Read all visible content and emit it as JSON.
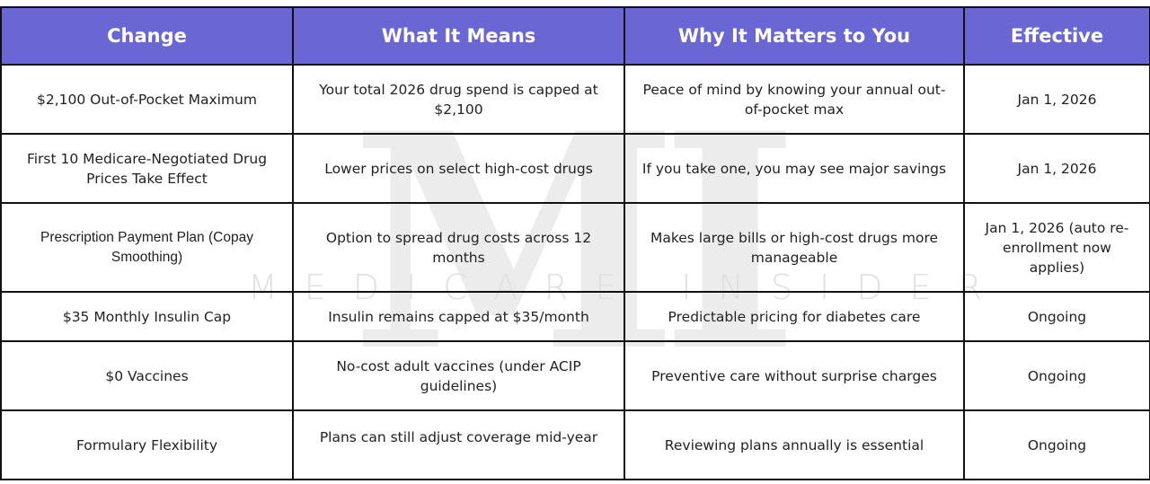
{
  "watermark": {
    "letters": "MI",
    "text": "MEDICARE INSIDER"
  },
  "headers": [
    "Change",
    "What It Means",
    "Why It Matters to You",
    "Effective"
  ],
  "rows": [
    [
      "$2,100 Out-of-Pocket Maximum",
      "Your total 2026 drug spend is capped at $2,100",
      "Peace of mind by knowing your annual out-of-pocket max",
      "Jan 1, 2026"
    ],
    [
      "First 10 Medicare-Negotiated Drug Prices Take Effect",
      "Lower prices on select high-cost drugs",
      "If you take one, you may see major savings",
      "Jan 1, 2026"
    ],
    [
      "Prescription Payment Plan (Copay Smoothing)",
      "Option to spread drug costs across 12 months",
      "Makes large bills or high-cost drugs more manageable",
      "Jan 1, 2026 (auto re-enrollment now applies)"
    ],
    [
      "$35 Monthly Insulin Cap",
      "Insulin remains capped at $35/month",
      "Predictable pricing for diabetes care",
      "Ongoing"
    ],
    [
      "$0 Vaccines",
      "No-cost adult vaccines (under ACIP guidelines)",
      "Preventive care without surprise charges",
      "Ongoing"
    ],
    [
      "Formulary Flexibility",
      "Plans can still adjust coverage mid-year",
      "Reviewing plans annually is essential",
      "Ongoing"
    ]
  ],
  "colors": {
    "header_bg": "#6a67d5",
    "header_text": "#ffffff",
    "border": "#111111"
  }
}
